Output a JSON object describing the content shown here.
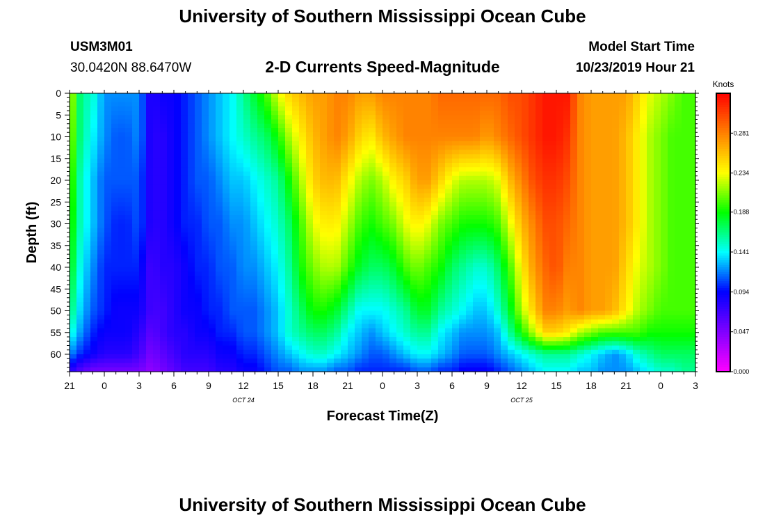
{
  "page": {
    "title_top": "University of Southern Mississippi Ocean Cube",
    "title_bottom": "University of Southern Mississippi Ocean Cube",
    "station_id": "USM3M01",
    "station_location": "30.0420N 88.6470W",
    "plot_title": "2-D Currents Speed-Magnitude",
    "model_start_label": "Model Start Time",
    "model_start_value": "10/23/2019 Hour 21"
  },
  "chart_data": {
    "type": "heatmap",
    "title": "2-D Currents Speed-Magnitude",
    "xlabel": "Forecast Time(Z)",
    "ylabel": "Depth (ft)",
    "x_ticks": [
      "21",
      "0",
      "3",
      "6",
      "9",
      "12",
      "15",
      "18",
      "21",
      "0",
      "3",
      "6",
      "9",
      "12",
      "15",
      "18",
      "21",
      "0",
      "3"
    ],
    "x_range_hours": [
      0,
      54
    ],
    "date_labels": [
      {
        "text": "OCT 24",
        "at_hour": 15
      },
      {
        "text": "OCT 25",
        "at_hour": 39
      }
    ],
    "y_ticks": [
      0,
      5,
      10,
      15,
      20,
      25,
      30,
      35,
      40,
      45,
      50,
      55,
      60
    ],
    "ylim": [
      0,
      64
    ],
    "colorbar": {
      "unit": "Knots",
      "ticks": [
        "0.000",
        "0.047",
        "0.094",
        "0.141",
        "0.188",
        "0.234",
        "0.281"
      ],
      "range": [
        0.0,
        0.328
      ],
      "colors": [
        "#ff00ff",
        "#8000ff",
        "#0000ff",
        "#00ffff",
        "#00ff00",
        "#ffff00",
        "#ff8000",
        "#ff0000"
      ]
    },
    "time_hours": [
      0,
      1,
      2,
      3,
      4,
      5,
      6,
      7,
      8,
      9,
      10,
      11,
      12,
      13,
      14,
      15,
      16,
      17,
      18,
      19,
      20,
      21,
      22,
      23,
      24,
      25,
      26,
      27,
      28,
      29,
      30,
      31,
      32,
      33,
      34,
      35,
      36,
      37,
      38,
      39,
      40,
      41,
      42,
      43,
      44,
      45,
      46,
      47,
      48,
      49,
      50,
      51,
      52,
      53,
      54
    ],
    "depth_ft": [
      0,
      10,
      20,
      30,
      40,
      50,
      55,
      60,
      64
    ],
    "speed_knots": [
      [
        0.23,
        0.16,
        0.15,
        0.12,
        0.12,
        0.12,
        0.12,
        0.08,
        0.09,
        0.09,
        0.1,
        0.11,
        0.12,
        0.13,
        0.14,
        0.16,
        0.18,
        0.2,
        0.23,
        0.25,
        0.26,
        0.27,
        0.27,
        0.28,
        0.28,
        0.27,
        0.27,
        0.28,
        0.28,
        0.28,
        0.28,
        0.28,
        0.29,
        0.29,
        0.29,
        0.29,
        0.29,
        0.29,
        0.3,
        0.3,
        0.31,
        0.32,
        0.32,
        0.32,
        0.28,
        0.27,
        0.27,
        0.27,
        0.27,
        0.25,
        0.23,
        0.22,
        0.21,
        0.2,
        0.2
      ],
      [
        0.22,
        0.16,
        0.14,
        0.12,
        0.11,
        0.11,
        0.12,
        0.08,
        0.08,
        0.09,
        0.1,
        0.11,
        0.12,
        0.13,
        0.14,
        0.15,
        0.16,
        0.17,
        0.19,
        0.22,
        0.24,
        0.26,
        0.27,
        0.28,
        0.27,
        0.25,
        0.24,
        0.26,
        0.27,
        0.28,
        0.28,
        0.28,
        0.28,
        0.28,
        0.28,
        0.28,
        0.27,
        0.28,
        0.29,
        0.3,
        0.31,
        0.32,
        0.32,
        0.31,
        0.28,
        0.27,
        0.27,
        0.27,
        0.26,
        0.24,
        0.22,
        0.21,
        0.2,
        0.2,
        0.2
      ],
      [
        0.21,
        0.15,
        0.13,
        0.11,
        0.11,
        0.11,
        0.11,
        0.08,
        0.08,
        0.09,
        0.1,
        0.11,
        0.11,
        0.12,
        0.13,
        0.13,
        0.14,
        0.15,
        0.16,
        0.19,
        0.22,
        0.25,
        0.26,
        0.26,
        0.24,
        0.22,
        0.21,
        0.22,
        0.24,
        0.25,
        0.27,
        0.27,
        0.25,
        0.23,
        0.22,
        0.22,
        0.22,
        0.23,
        0.26,
        0.28,
        0.3,
        0.31,
        0.31,
        0.3,
        0.28,
        0.27,
        0.27,
        0.27,
        0.26,
        0.24,
        0.22,
        0.21,
        0.2,
        0.2,
        0.2
      ],
      [
        0.2,
        0.15,
        0.13,
        0.11,
        0.1,
        0.1,
        0.11,
        0.08,
        0.08,
        0.09,
        0.1,
        0.1,
        0.11,
        0.11,
        0.12,
        0.12,
        0.13,
        0.14,
        0.15,
        0.17,
        0.2,
        0.23,
        0.24,
        0.24,
        0.22,
        0.2,
        0.19,
        0.2,
        0.21,
        0.23,
        0.24,
        0.23,
        0.21,
        0.2,
        0.19,
        0.19,
        0.19,
        0.2,
        0.23,
        0.26,
        0.28,
        0.3,
        0.3,
        0.29,
        0.28,
        0.27,
        0.27,
        0.27,
        0.26,
        0.24,
        0.22,
        0.21,
        0.2,
        0.2,
        0.2
      ],
      [
        0.19,
        0.14,
        0.12,
        0.1,
        0.1,
        0.1,
        0.1,
        0.07,
        0.08,
        0.08,
        0.09,
        0.1,
        0.1,
        0.11,
        0.11,
        0.12,
        0.12,
        0.13,
        0.14,
        0.16,
        0.19,
        0.21,
        0.22,
        0.22,
        0.2,
        0.18,
        0.17,
        0.17,
        0.18,
        0.2,
        0.21,
        0.2,
        0.19,
        0.17,
        0.16,
        0.15,
        0.15,
        0.17,
        0.2,
        0.24,
        0.27,
        0.29,
        0.3,
        0.28,
        0.28,
        0.27,
        0.27,
        0.27,
        0.25,
        0.23,
        0.22,
        0.21,
        0.2,
        0.2,
        0.2
      ],
      [
        0.17,
        0.13,
        0.11,
        0.1,
        0.09,
        0.09,
        0.09,
        0.07,
        0.07,
        0.08,
        0.09,
        0.09,
        0.1,
        0.1,
        0.11,
        0.11,
        0.11,
        0.12,
        0.13,
        0.15,
        0.17,
        0.19,
        0.19,
        0.18,
        0.16,
        0.14,
        0.14,
        0.14,
        0.15,
        0.16,
        0.18,
        0.18,
        0.16,
        0.15,
        0.14,
        0.13,
        0.13,
        0.15,
        0.18,
        0.22,
        0.25,
        0.28,
        0.28,
        0.27,
        0.28,
        0.27,
        0.27,
        0.26,
        0.24,
        0.22,
        0.21,
        0.2,
        0.2,
        0.2,
        0.2
      ],
      [
        0.15,
        0.12,
        0.1,
        0.09,
        0.09,
        0.09,
        0.08,
        0.06,
        0.07,
        0.08,
        0.08,
        0.09,
        0.09,
        0.1,
        0.1,
        0.11,
        0.11,
        0.12,
        0.13,
        0.15,
        0.16,
        0.17,
        0.17,
        0.16,
        0.14,
        0.13,
        0.12,
        0.13,
        0.14,
        0.15,
        0.16,
        0.16,
        0.14,
        0.13,
        0.12,
        0.12,
        0.12,
        0.13,
        0.16,
        0.19,
        0.22,
        0.25,
        0.25,
        0.24,
        0.22,
        0.21,
        0.2,
        0.2,
        0.2,
        0.2,
        0.19,
        0.19,
        0.19,
        0.19,
        0.19
      ],
      [
        0.12,
        0.1,
        0.09,
        0.08,
        0.08,
        0.08,
        0.07,
        0.05,
        0.06,
        0.07,
        0.08,
        0.08,
        0.08,
        0.09,
        0.09,
        0.1,
        0.1,
        0.11,
        0.12,
        0.13,
        0.14,
        0.15,
        0.15,
        0.14,
        0.13,
        0.12,
        0.11,
        0.11,
        0.12,
        0.13,
        0.14,
        0.14,
        0.13,
        0.12,
        0.11,
        0.11,
        0.11,
        0.12,
        0.13,
        0.14,
        0.15,
        0.16,
        0.16,
        0.16,
        0.15,
        0.14,
        0.13,
        0.12,
        0.13,
        0.15,
        0.16,
        0.17,
        0.17,
        0.17,
        0.17
      ],
      [
        0.08,
        0.06,
        0.05,
        0.05,
        0.05,
        0.05,
        0.05,
        0.04,
        0.05,
        0.06,
        0.07,
        0.07,
        0.07,
        0.08,
        0.08,
        0.09,
        0.09,
        0.1,
        0.11,
        0.11,
        0.12,
        0.12,
        0.12,
        0.11,
        0.11,
        0.1,
        0.1,
        0.1,
        0.1,
        0.1,
        0.11,
        0.11,
        0.1,
        0.1,
        0.09,
        0.09,
        0.09,
        0.1,
        0.11,
        0.12,
        0.13,
        0.14,
        0.14,
        0.14,
        0.13,
        0.13,
        0.12,
        0.12,
        0.12,
        0.13,
        0.14,
        0.15,
        0.15,
        0.16,
        0.16
      ]
    ]
  }
}
